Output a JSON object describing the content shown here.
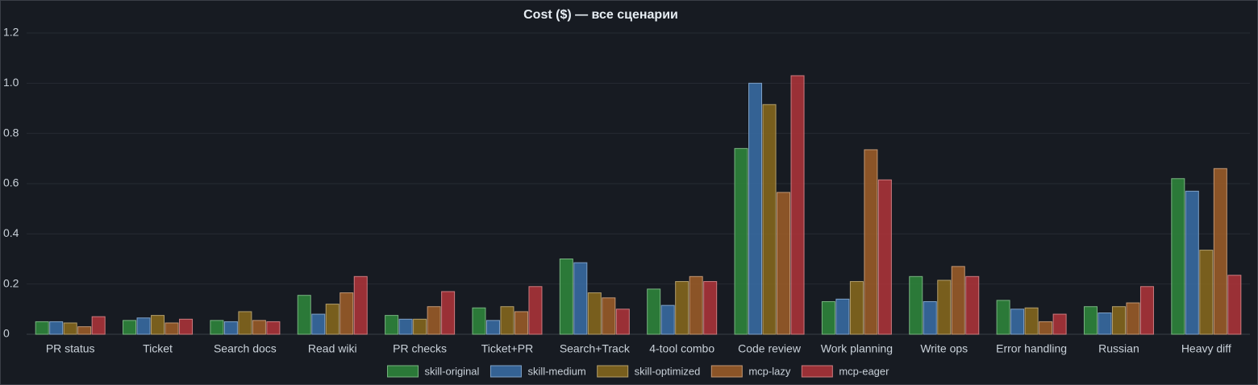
{
  "chart_data": {
    "type": "bar",
    "title": "Cost ($) — все сценарии",
    "categories": [
      "PR status",
      "Ticket",
      "Search docs",
      "Read wiki",
      "PR checks",
      "Ticket+PR",
      "Search+Track",
      "4-tool combo",
      "Code review",
      "Work planning",
      "Write ops",
      "Error handling",
      "Russian",
      "Heavy diff"
    ],
    "series": [
      {
        "name": "skill-original",
        "color": "#2f8a3c",
        "values": [
          0.05,
          0.055,
          0.055,
          0.155,
          0.075,
          0.105,
          0.3,
          0.18,
          0.74,
          0.13,
          0.23,
          0.135,
          0.11,
          0.62
        ]
      },
      {
        "name": "skill-medium",
        "color": "#3a6ea8",
        "values": [
          0.05,
          0.065,
          0.05,
          0.08,
          0.06,
          0.055,
          0.285,
          0.115,
          1.0,
          0.14,
          0.13,
          0.1,
          0.085,
          0.57
        ]
      },
      {
        "name": "skill-optimized",
        "color": "#8a6a1c",
        "values": [
          0.045,
          0.075,
          0.09,
          0.12,
          0.06,
          0.11,
          0.165,
          0.21,
          0.915,
          0.21,
          0.215,
          0.105,
          0.11,
          0.335
        ]
      },
      {
        "name": "mcp-lazy",
        "color": "#a05e28",
        "values": [
          0.03,
          0.045,
          0.055,
          0.165,
          0.11,
          0.09,
          0.145,
          0.23,
          0.565,
          0.735,
          0.27,
          0.05,
          0.125,
          0.66
        ]
      },
      {
        "name": "mcp-eager",
        "color": "#b1343a",
        "values": [
          0.07,
          0.06,
          0.05,
          0.23,
          0.17,
          0.19,
          0.1,
          0.21,
          1.03,
          0.615,
          0.23,
          0.08,
          0.19,
          0.235
        ]
      }
    ],
    "ylim": [
      0,
      1.2
    ],
    "yticks": [
      0,
      0.2,
      0.4,
      0.6,
      0.8,
      {
        "value": 1,
        "label": "1.0"
      },
      1.2
    ],
    "grid": true,
    "legend": "bottom"
  }
}
